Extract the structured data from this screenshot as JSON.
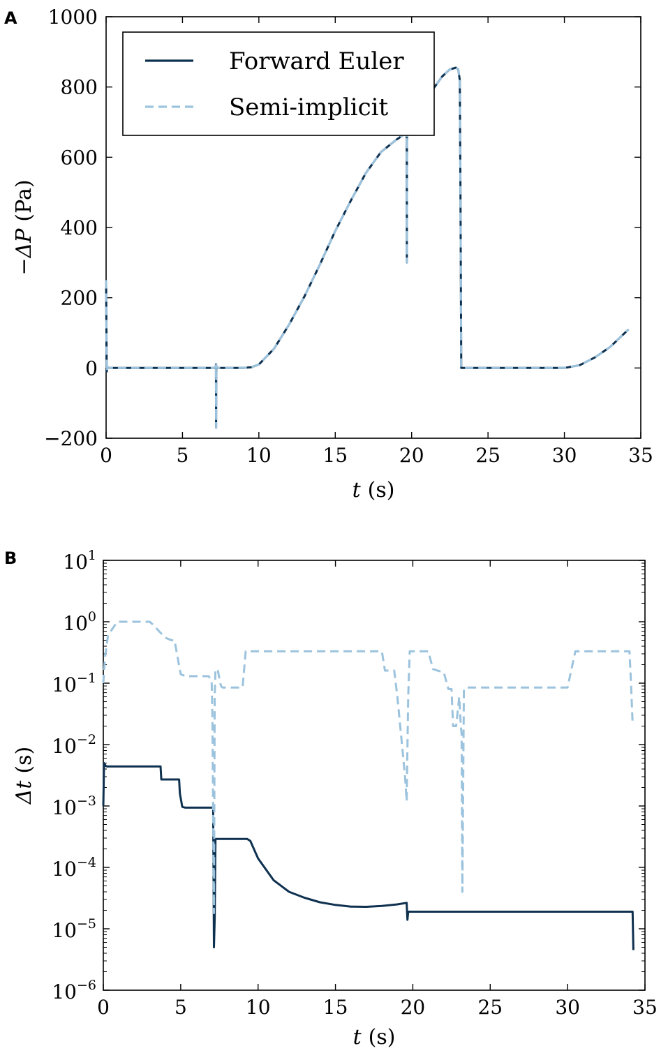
{
  "colors": {
    "forward_euler": "#0f3150",
    "semi_implicit": "#9cc3dd",
    "axes": "#000000"
  },
  "chart_data": [
    {
      "type": "line",
      "panel_label": "A",
      "xlabel_var": "t",
      "xlabel_unit": "(s)",
      "ylabel_var": "−ΔP",
      "ylabel_unit": "(Pa)",
      "xlim": [
        0,
        35
      ],
      "ylim": [
        -200,
        1000
      ],
      "xticks": [
        0,
        5,
        10,
        15,
        20,
        25,
        30,
        35
      ],
      "xtick_labels": [
        "0",
        "5",
        "10",
        "15",
        "20",
        "25",
        "30",
        "35"
      ],
      "yticks": [
        -200,
        0,
        200,
        400,
        600,
        800,
        1000
      ],
      "ytick_labels": [
        "−200",
        "0",
        "200",
        "400",
        "600",
        "800",
        "1000"
      ],
      "legend": {
        "position": "top-left",
        "entries": [
          "Forward Euler",
          "Semi-implicit"
        ]
      },
      "series": [
        {
          "name": "Forward Euler",
          "style": "solid",
          "x": [
            0,
            0.04,
            0.1,
            0.2,
            7.18,
            7.19,
            7.2,
            7.21,
            7.22,
            9.0,
            9.5,
            10,
            11,
            12,
            13,
            14,
            15,
            16,
            17,
            18,
            19,
            19.68,
            19.69,
            19.7,
            19.71,
            19.72,
            20,
            21,
            22,
            22.5,
            22.9,
            23.05,
            23.15,
            23.2,
            23.25,
            23.3,
            25,
            28,
            30,
            31,
            32,
            33,
            34.2
          ],
          "y": [
            250,
            -10,
            2,
            0,
            0,
            10,
            -170,
            8,
            0,
            0,
            2,
            10,
            55,
            125,
            205,
            295,
            390,
            475,
            555,
            615,
            650,
            670,
            300,
            670,
            660,
            672,
            700,
            770,
            830,
            850,
            855,
            850,
            820,
            500,
            0,
            0,
            0,
            0,
            0,
            8,
            30,
            60,
            110
          ]
        },
        {
          "name": "Semi-implicit",
          "style": "dashed",
          "x": [
            0,
            0.04,
            0.1,
            0.2,
            7.18,
            7.19,
            7.2,
            7.21,
            7.22,
            9.0,
            9.5,
            10,
            11,
            12,
            13,
            14,
            15,
            16,
            17,
            18,
            19,
            19.68,
            19.69,
            19.7,
            19.71,
            19.72,
            20,
            21,
            22,
            22.5,
            22.9,
            23.05,
            23.15,
            23.2,
            23.25,
            23.3,
            25,
            28,
            30,
            31,
            32,
            33,
            34.2
          ],
          "y": [
            250,
            -10,
            2,
            0,
            0,
            10,
            -170,
            8,
            0,
            0,
            2,
            10,
            55,
            125,
            205,
            295,
            390,
            475,
            555,
            615,
            650,
            670,
            300,
            670,
            660,
            672,
            700,
            770,
            830,
            850,
            855,
            850,
            820,
            500,
            0,
            0,
            0,
            0,
            0,
            8,
            30,
            60,
            110
          ]
        }
      ]
    },
    {
      "type": "line",
      "panel_label": "B",
      "xlabel_var": "t",
      "xlabel_unit": "(s)",
      "ylabel_var": "Δt",
      "ylabel_unit": "(s)",
      "yscale": "log",
      "xlim": [
        0,
        35
      ],
      "ylim": [
        1e-06,
        10
      ],
      "xticks": [
        0,
        5,
        10,
        15,
        20,
        25,
        30,
        35
      ],
      "xtick_labels": [
        "0",
        "5",
        "10",
        "15",
        "20",
        "25",
        "30",
        "35"
      ],
      "yticks_exp": [
        1,
        0,
        -1,
        -2,
        -3,
        -4,
        -5,
        -6
      ],
      "ytick_base": "10",
      "ytick_exp_labels": [
        "1",
        "0",
        "−1",
        "−2",
        "−3",
        "−4",
        "−5",
        "−6"
      ],
      "series": [
        {
          "name": "Forward Euler",
          "style": "solid",
          "x": [
            0,
            0.05,
            0.15,
            0.25,
            3.7,
            3.75,
            4.9,
            4.95,
            5.1,
            5.3,
            7.1,
            7.15,
            7.2,
            7.25,
            9.3,
            9.5,
            10,
            11,
            12,
            13,
            14,
            15,
            16,
            17,
            18,
            19,
            19.6,
            19.65,
            19.7,
            19.75,
            34.2,
            34.25
          ],
          "y": [
            0.001,
            0.005,
            0.0045,
            0.0044,
            0.0044,
            0.0027,
            0.0027,
            0.0016,
            0.00097,
            0.00094,
            0.00094,
            5e-06,
            1.5e-05,
            0.00029,
            0.00029,
            0.00027,
            0.00014,
            6.2e-05,
            4e-05,
            3.2e-05,
            2.7e-05,
            2.45e-05,
            2.3e-05,
            2.28e-05,
            2.35e-05,
            2.5e-05,
            2.65e-05,
            1.4e-05,
            1.9e-05,
            1.9e-05,
            1.9e-05,
            4.5e-06
          ]
        },
        {
          "name": "Semi-implicit",
          "style": "dashed",
          "x": [
            0,
            0.1,
            0.3,
            0.9,
            3.0,
            3.2,
            4.0,
            4.4,
            4.6,
            5.0,
            5.3,
            6.8,
            7.0,
            7.05,
            7.15,
            7.2,
            7.25,
            7.4,
            7.6,
            7.7,
            8.0,
            9.0,
            9.2,
            9.5,
            18.0,
            18.2,
            18.8,
            19.0,
            19.3,
            19.5,
            19.6,
            19.7,
            19.8,
            20.0,
            21.0,
            21.3,
            21.6,
            22.0,
            22.3,
            22.5,
            22.6,
            22.8,
            23.0,
            23.1,
            23.15,
            23.2,
            23.3,
            23.5,
            23.8,
            24.0,
            30.0,
            30.5,
            34.0,
            34.1,
            34.2
          ],
          "y": [
            0.1,
            0.25,
            0.6,
            1.0,
            1.0,
            0.9,
            0.55,
            0.5,
            0.5,
            0.14,
            0.13,
            0.13,
            0.11,
            0.03,
            1.8e-05,
            0.06,
            0.17,
            0.16,
            0.09,
            0.085,
            0.085,
            0.085,
            0.33,
            0.33,
            0.33,
            0.16,
            0.16,
            0.06,
            0.01,
            0.003,
            0.0012,
            0.06,
            0.33,
            0.33,
            0.33,
            0.17,
            0.16,
            0.15,
            0.08,
            0.08,
            0.02,
            0.02,
            0.06,
            0.02,
            0.015,
            4e-05,
            0.08,
            0.085,
            0.085,
            0.085,
            0.085,
            0.33,
            0.33,
            0.1,
            0.022
          ]
        }
      ]
    }
  ]
}
